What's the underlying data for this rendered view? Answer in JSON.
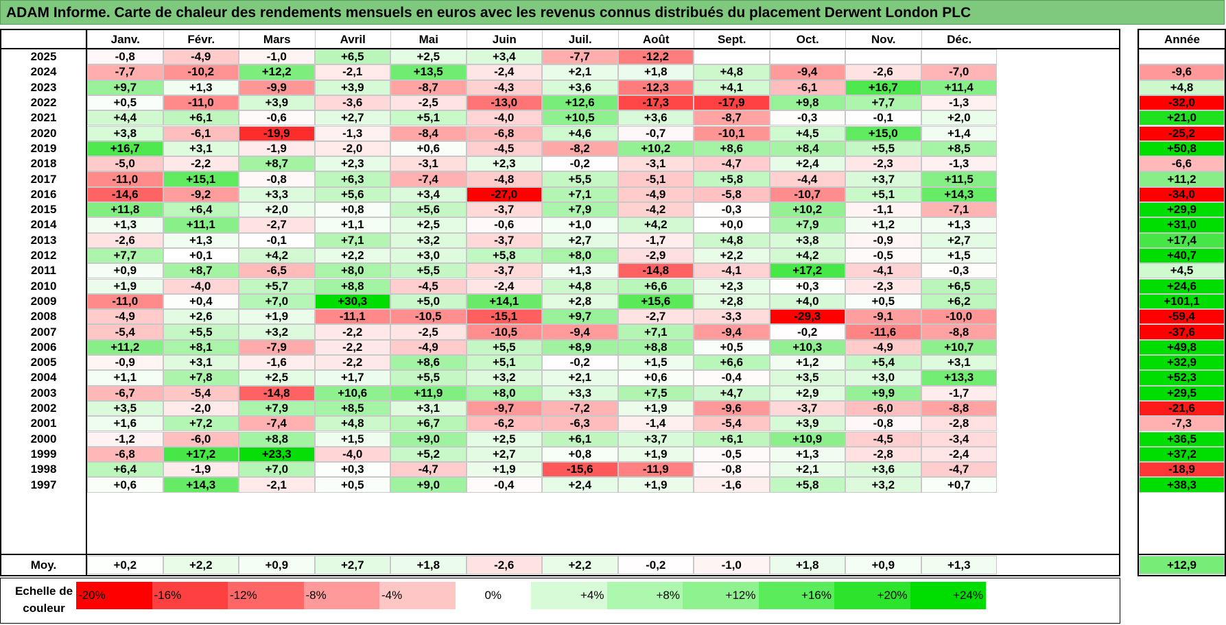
{
  "title": "ADAM Informe. Carte de chaleur des rendements mensuels en euros avec les revenus connus distribués du placement Derwent London PLC",
  "chart_data": {
    "type": "heatmap",
    "title": "ADAM Informe. Carte de chaleur des rendements mensuels en euros avec les revenus connus distribués du placement Derwent London PLC",
    "columns": [
      "Janv.",
      "Févr.",
      "Mars",
      "Avril",
      "Mai",
      "Juin",
      "Juil.",
      "Août",
      "Sept.",
      "Oct.",
      "Nov.",
      "Déc."
    ],
    "year_column_label": "Année",
    "rows": [
      {
        "label": "2025",
        "values": [
          "-0,8",
          "-4,9",
          "-1,0",
          "+6,5",
          "+2,5",
          "+3,4",
          "-7,7",
          "-12,2",
          "",
          "",
          "",
          ""
        ],
        "year": ""
      },
      {
        "label": "2024",
        "values": [
          "-7,7",
          "-10,2",
          "+12,2",
          "-2,1",
          "+13,5",
          "-2,4",
          "+2,1",
          "+1,8",
          "+4,8",
          "-9,4",
          "-2,6",
          "-7,0"
        ],
        "year": "-9,6"
      },
      {
        "label": "2023",
        "values": [
          "+9,7",
          "+1,3",
          "-9,9",
          "+3,9",
          "-8,7",
          "-4,3",
          "+3,6",
          "-12,3",
          "+4,1",
          "-6,1",
          "+16,7",
          "+11,4"
        ],
        "year": "+4,8"
      },
      {
        "label": "2022",
        "values": [
          "+0,5",
          "-11,0",
          "+3,9",
          "-3,6",
          "-2,5",
          "-13,0",
          "+12,6",
          "-17,3",
          "-17,9",
          "+9,8",
          "+7,7",
          "-1,3"
        ],
        "year": "-32,0"
      },
      {
        "label": "2021",
        "values": [
          "+4,4",
          "+6,1",
          "-0,6",
          "+2,7",
          "+5,1",
          "-4,0",
          "+10,5",
          "+3,6",
          "-8,7",
          "-0,3",
          "-0,1",
          "+2,0"
        ],
        "year": "+21,0"
      },
      {
        "label": "2020",
        "values": [
          "+3,8",
          "-6,1",
          "-19,9",
          "-1,3",
          "-8,4",
          "-6,8",
          "+4,6",
          "-0,7",
          "-10,1",
          "+4,5",
          "+15,0",
          "+1,4"
        ],
        "year": "-25,2"
      },
      {
        "label": "2019",
        "values": [
          "+16,7",
          "+3,1",
          "-1,9",
          "-2,0",
          "+0,6",
          "-4,5",
          "-8,2",
          "+10,2",
          "+8,6",
          "+8,4",
          "+5,5",
          "+8,5"
        ],
        "year": "+50,8"
      },
      {
        "label": "2018",
        "values": [
          "-5,0",
          "-2,2",
          "+8,7",
          "+2,3",
          "-3,1",
          "+2,3",
          "-0,2",
          "-3,1",
          "-4,7",
          "+2,4",
          "-2,3",
          "-1,3"
        ],
        "year": "-6,6"
      },
      {
        "label": "2017",
        "values": [
          "-11,0",
          "+15,1",
          "-0,8",
          "+6,3",
          "-7,4",
          "-4,8",
          "+5,5",
          "-5,1",
          "+5,8",
          "-4,4",
          "+3,7",
          "+11,5"
        ],
        "year": "+11,2"
      },
      {
        "label": "2016",
        "values": [
          "-14,6",
          "-9,2",
          "+3,3",
          "+5,6",
          "+3,4",
          "-27,0",
          "+7,1",
          "-4,9",
          "-5,8",
          "-10,7",
          "+5,1",
          "+14,3"
        ],
        "year": "-34,0"
      },
      {
        "label": "2015",
        "values": [
          "+11,8",
          "+6,4",
          "+2,0",
          "+0,8",
          "+5,6",
          "-3,7",
          "+7,9",
          "-4,2",
          "-0,3",
          "+10,2",
          "-1,1",
          "-7,1"
        ],
        "year": "+29,9"
      },
      {
        "label": "2014",
        "values": [
          "+1,3",
          "+11,1",
          "-2,7",
          "+1,1",
          "+2,5",
          "-0,6",
          "+1,0",
          "+4,2",
          "+0,0",
          "+7,9",
          "+1,2",
          "+1,3"
        ],
        "year": "+31,0"
      },
      {
        "label": "2013",
        "values": [
          "-2,6",
          "+1,3",
          "-0,1",
          "+7,1",
          "+3,2",
          "-3,7",
          "+2,7",
          "-1,7",
          "+4,8",
          "+3,8",
          "-0,9",
          "+2,7"
        ],
        "year": "+17,4"
      },
      {
        "label": "2012",
        "values": [
          "+7,7",
          "+0,1",
          "+4,2",
          "+2,2",
          "+3,0",
          "+5,8",
          "+8,0",
          "-2,9",
          "+2,2",
          "+4,2",
          "-0,5",
          "+1,5"
        ],
        "year": "+40,7"
      },
      {
        "label": "2011",
        "values": [
          "+0,9",
          "+8,7",
          "-6,5",
          "+8,0",
          "+5,5",
          "-3,7",
          "+1,3",
          "-14,8",
          "-4,1",
          "+17,2",
          "-4,1",
          "-0,3"
        ],
        "year": "+4,5"
      },
      {
        "label": "2010",
        "values": [
          "+1,9",
          "-4,0",
          "+5,7",
          "+8,8",
          "-4,5",
          "-2,4",
          "+4,8",
          "+6,6",
          "+2,3",
          "+0,3",
          "-2,3",
          "+6,5"
        ],
        "year": "+24,6"
      },
      {
        "label": "2009",
        "values": [
          "-11,0",
          "+0,4",
          "+7,0",
          "+30,3",
          "+5,0",
          "+14,1",
          "+2,8",
          "+15,6",
          "+2,8",
          "+4,0",
          "+0,5",
          "+6,2"
        ],
        "year": "+101,1"
      },
      {
        "label": "2008",
        "values": [
          "-4,9",
          "+2,6",
          "+1,9",
          "-11,1",
          "-10,5",
          "-15,1",
          "+9,7",
          "-2,7",
          "-3,3",
          "-29,3",
          "-9,1",
          "-10,0"
        ],
        "year": "-59,4"
      },
      {
        "label": "2007",
        "values": [
          "-5,4",
          "+5,5",
          "+3,2",
          "-2,2",
          "-2,5",
          "-10,5",
          "-9,4",
          "+7,1",
          "-9,4",
          "-0,2",
          "-11,6",
          "-8,8"
        ],
        "year": "-37,6"
      },
      {
        "label": "2006",
        "values": [
          "+11,2",
          "+8,1",
          "-7,9",
          "-2,2",
          "-4,9",
          "+5,5",
          "+8,9",
          "+8,8",
          "+0,5",
          "+10,3",
          "-4,9",
          "+10,7"
        ],
        "year": "+49,8"
      },
      {
        "label": "2005",
        "values": [
          "-0,9",
          "+3,1",
          "-1,6",
          "-2,2",
          "+8,6",
          "+5,1",
          "-0,2",
          "+1,5",
          "+6,6",
          "+1,2",
          "+5,4",
          "+3,1"
        ],
        "year": "+32,9"
      },
      {
        "label": "2004",
        "values": [
          "+1,1",
          "+7,8",
          "+2,5",
          "+1,7",
          "+5,5",
          "+3,2",
          "+2,1",
          "+0,6",
          "-0,4",
          "+3,5",
          "+3,0",
          "+13,3"
        ],
        "year": "+52,3"
      },
      {
        "label": "2003",
        "values": [
          "-6,7",
          "-5,4",
          "-14,8",
          "+10,6",
          "+11,9",
          "+8,0",
          "+3,3",
          "+7,5",
          "+4,7",
          "+2,9",
          "+9,9",
          "-1,7"
        ],
        "year": "+29,5"
      },
      {
        "label": "2002",
        "values": [
          "+3,5",
          "-2,0",
          "+7,9",
          "+8,5",
          "+3,1",
          "-9,7",
          "-7,2",
          "+1,9",
          "-9,6",
          "-3,7",
          "-6,0",
          "-8,8"
        ],
        "year": "-21,6"
      },
      {
        "label": "2001",
        "values": [
          "+1,6",
          "+7,2",
          "-7,4",
          "+4,8",
          "+6,7",
          "-6,2",
          "-6,3",
          "-1,4",
          "-5,4",
          "+3,9",
          "-0,8",
          "-2,8"
        ],
        "year": "-7,3"
      },
      {
        "label": "2000",
        "values": [
          "-1,2",
          "-6,0",
          "+8,8",
          "+1,5",
          "+9,0",
          "+2,5",
          "+6,1",
          "+3,7",
          "+6,1",
          "+10,9",
          "-4,5",
          "-3,4"
        ],
        "year": "+36,5"
      },
      {
        "label": "1999",
        "values": [
          "-6,8",
          "+17,2",
          "+23,3",
          "-4,0",
          "+5,2",
          "+2,7",
          "+0,8",
          "+1,9",
          "-0,5",
          "+1,3",
          "-2,8",
          "-2,4"
        ],
        "year": "+37,2"
      },
      {
        "label": "1998",
        "values": [
          "+6,4",
          "-1,9",
          "+7,0",
          "+0,3",
          "-4,7",
          "+1,9",
          "-15,6",
          "-11,9",
          "-0,8",
          "+2,1",
          "+3,6",
          "-4,7"
        ],
        "year": "-18,9"
      },
      {
        "label": "1997",
        "values": [
          "+0,6",
          "+14,3",
          "-2,1",
          "+0,5",
          "+9,0",
          "-0,4",
          "+2,4",
          "+1,9",
          "-1,6",
          "+5,8",
          "+3,2",
          "+0,7"
        ],
        "year": "+38,3"
      }
    ],
    "average": {
      "label": "Moy.",
      "values": [
        "+0,2",
        "+2,2",
        "+0,9",
        "+2,7",
        "+1,8",
        "-2,6",
        "+2,2",
        "-0,2",
        "-1,0",
        "+1,8",
        "+0,9",
        "+1,3"
      ],
      "year": "+12,9"
    },
    "scale": {
      "label": "Echelle de couleur",
      "entries": [
        {
          "text": "-20%",
          "value": -20,
          "color": "#ff0000"
        },
        {
          "text": "-16%",
          "value": -16,
          "color": "#ff4040"
        },
        {
          "text": "-12%",
          "value": -12,
          "color": "#ff6666"
        },
        {
          "text": "-8%",
          "value": -8,
          "color": "#ff9a9a"
        },
        {
          "text": "-4%",
          "value": -4,
          "color": "#ffc6c6"
        },
        {
          "text": "0%",
          "value": 0,
          "color": "#ffffff"
        },
        {
          "text": "+4%",
          "value": 4,
          "color": "#d6fbd6"
        },
        {
          "text": "+8%",
          "value": 8,
          "color": "#aef7ae"
        },
        {
          "text": "+12%",
          "value": 12,
          "color": "#8ef28e"
        },
        {
          "text": "+16%",
          "value": 16,
          "color": "#5aec5a"
        },
        {
          "text": "+20%",
          "value": 20,
          "color": "#2de42d"
        },
        {
          "text": "+24%",
          "value": 24,
          "color": "#00dd00"
        }
      ]
    }
  }
}
